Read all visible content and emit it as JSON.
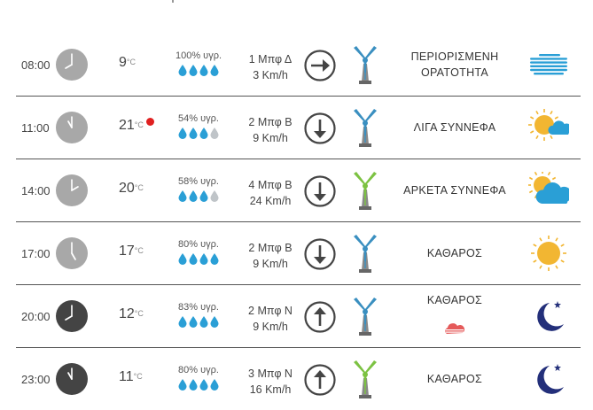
{
  "forecast": {
    "rows": [
      {
        "time": "08:00",
        "clock_hour": 8,
        "clock_dark": false,
        "temp": "9",
        "unit": "°C",
        "hot": false,
        "humidity": "100% υγρ.",
        "drops_full": 4,
        "wind_bft": "1 Μπφ Δ",
        "wind_speed": "3 Km/h",
        "wind_dir_icon": "arrow-right-icon",
        "wind_dir_deg": 90,
        "mill_color": "#3a8fc0",
        "desc": "ΠΕΡΙΟΡΙΣΜΕΝΗ ΟΡΑΤΟΤΗΤΑ",
        "weather_icon": "fog-icon"
      },
      {
        "time": "11:00",
        "clock_hour": 11,
        "clock_dark": false,
        "temp": "21",
        "unit": "°C",
        "hot": true,
        "humidity": "54% υγρ.",
        "drops_full": 3,
        "wind_bft": "2 Μπφ Β",
        "wind_speed": "9 Km/h",
        "wind_dir_icon": "arrow-down-icon",
        "wind_dir_deg": 180,
        "mill_color": "#3a8fc0",
        "desc": "ΛΙΓΑ ΣΥΝΝΕΦΑ",
        "weather_icon": "sun-small-cloud-icon"
      },
      {
        "time": "14:00",
        "clock_hour": 2,
        "clock_dark": false,
        "temp": "20",
        "unit": "°C",
        "hot": false,
        "humidity": "58% υγρ.",
        "drops_full": 3,
        "wind_bft": "4 Μπφ Β",
        "wind_speed": "24 Km/h",
        "wind_dir_icon": "arrow-down-icon",
        "wind_dir_deg": 180,
        "mill_color": "#7cc242",
        "desc": "ΑΡΚΕΤΑ ΣΥΝΝΕΦΑ",
        "weather_icon": "sun-cloud-icon"
      },
      {
        "time": "17:00",
        "clock_hour": 5,
        "clock_dark": false,
        "temp": "17",
        "unit": "°C",
        "hot": false,
        "humidity": "80% υγρ.",
        "drops_full": 4,
        "wind_bft": "2 Μπφ Β",
        "wind_speed": "9 Km/h",
        "wind_dir_icon": "arrow-down-icon",
        "wind_dir_deg": 180,
        "mill_color": "#3a8fc0",
        "desc": "ΚΑΘΑΡΟΣ",
        "weather_icon": "sun-icon"
      },
      {
        "time": "20:00",
        "clock_hour": 8,
        "clock_dark": true,
        "temp": "12",
        "unit": "°C",
        "hot": false,
        "humidity": "83% υγρ.",
        "drops_full": 4,
        "wind_bft": "2 Μπφ Ν",
        "wind_speed": "9 Km/h",
        "wind_dir_icon": "arrow-up-icon",
        "wind_dir_deg": 0,
        "mill_color": "#3a8fc0",
        "desc": "ΚΑΘΑΡΟΣ",
        "weather_icon": "moon-icon",
        "extra_icon": "red-haze-icon"
      },
      {
        "time": "23:00",
        "clock_hour": 11,
        "clock_dark": true,
        "temp": "11",
        "unit": "°C",
        "hot": false,
        "humidity": "80% υγρ.",
        "drops_full": 4,
        "wind_bft": "3 Μπφ Ν",
        "wind_speed": "16 Km/h",
        "wind_dir_icon": "arrow-up-icon",
        "wind_dir_deg": 0,
        "mill_color": "#7cc242",
        "desc": "ΚΑΘΑΡΟΣ",
        "weather_icon": "moon-icon"
      }
    ]
  },
  "colors": {
    "drop_full": "#2a9fd6",
    "drop_empty": "#bfc4c8",
    "clock_light": "#a8a8a8",
    "clock_dark": "#444444",
    "sun": "#f2b632",
    "cloud": "#2a9fd6",
    "moon": "#232f7a"
  }
}
